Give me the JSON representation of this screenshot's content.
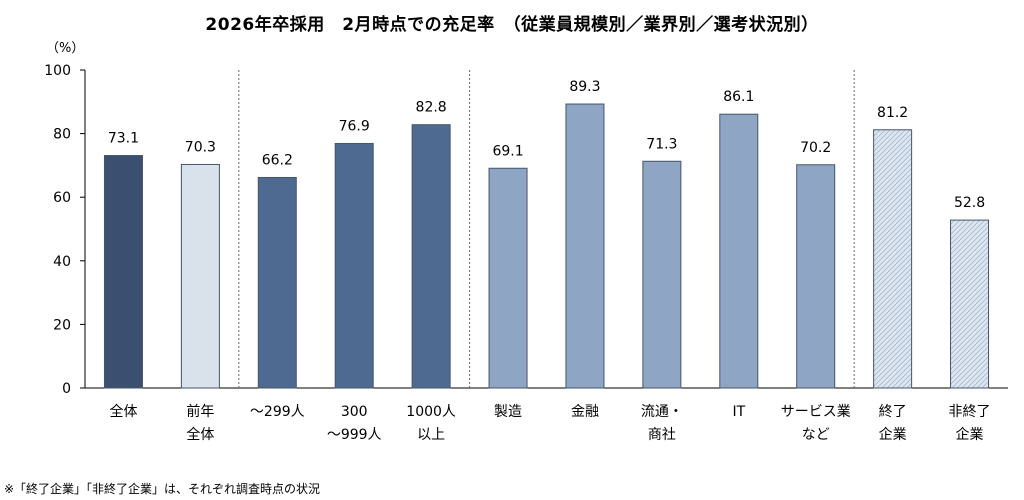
{
  "chart_data": {
    "type": "bar",
    "title": "2026年卒採用　2月時点での充足率　（従業員規模別／業界別／選考状況別）",
    "ylabel": "（%）",
    "ylim": [
      0,
      100
    ],
    "yticks": [
      "0",
      "20",
      "40",
      "60",
      "80",
      "100"
    ],
    "grid": false,
    "categories": [
      [
        "全体"
      ],
      [
        "前年",
        "全体"
      ],
      [
        "～299人"
      ],
      [
        "300",
        "～999人"
      ],
      [
        "1000人",
        "以上"
      ],
      [
        "製造"
      ],
      [
        "金融"
      ],
      [
        "流通・",
        "商社"
      ],
      [
        "IT"
      ],
      [
        "サービス業",
        "など"
      ],
      [
        "終了",
        "企業"
      ],
      [
        "非終了",
        "企業"
      ]
    ],
    "values": [
      73.1,
      70.3,
      66.2,
      76.9,
      82.8,
      69.1,
      89.3,
      71.3,
      86.1,
      70.2,
      81.2,
      52.8
    ],
    "value_labels": [
      "73.1",
      "70.3",
      "66.2",
      "76.9",
      "82.8",
      "69.1",
      "89.3",
      "71.3",
      "86.1",
      "70.2",
      "81.2",
      "52.8"
    ],
    "bar_colors": [
      "#3b4f6e",
      "#d9e1eb",
      "#4f6a91",
      "#4f6a91",
      "#4f6a91",
      "#8fa5c4",
      "#8fa5c4",
      "#8fa5c4",
      "#8fa5c4",
      "#8fa5c4",
      "#dde6f0",
      "#dde6f0"
    ],
    "bar_hatched": [
      false,
      false,
      false,
      false,
      false,
      false,
      false,
      false,
      false,
      false,
      true,
      true
    ],
    "group_separators_after": [
      1,
      4,
      9
    ]
  },
  "footnote": "※「終了企業」「非終了企業」は、それぞれ調査時点の状況"
}
